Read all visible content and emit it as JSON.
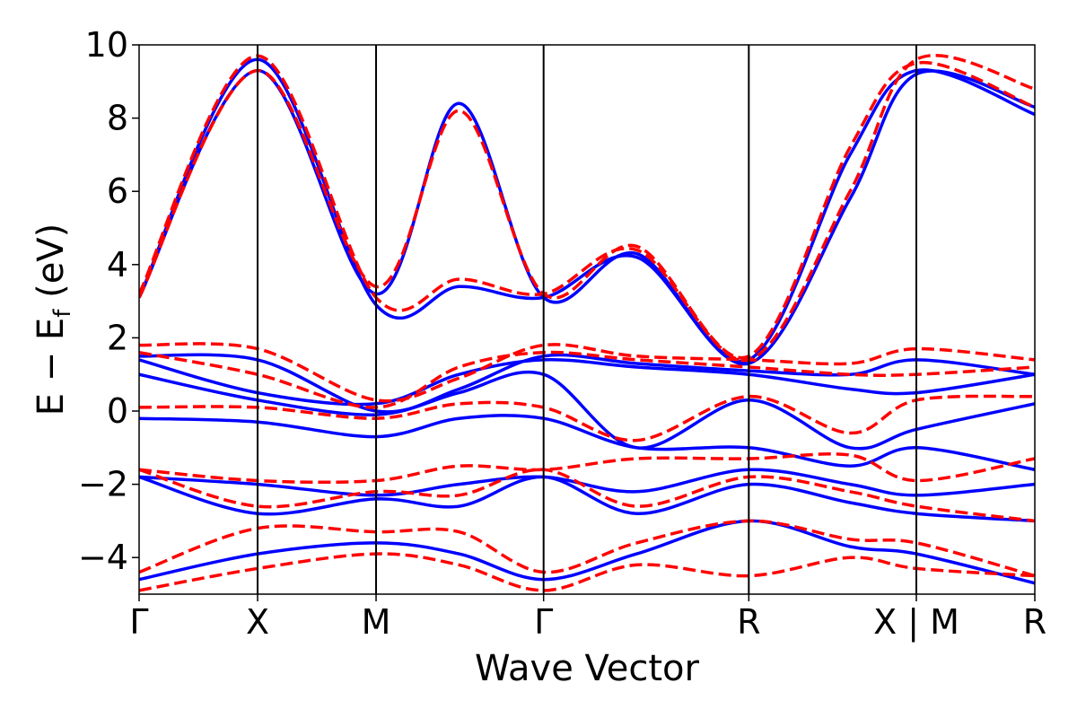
{
  "chart_data": {
    "type": "line",
    "title": "",
    "xlabel": "Wave Vector",
    "ylabel": {
      "main": "E − E",
      "sub": "f",
      "unit": " (eV)"
    },
    "ylim": [
      -5,
      10
    ],
    "yticks": [
      10,
      8,
      6,
      4,
      2,
      0,
      -2,
      -4
    ],
    "ytick_labels": [
      "10",
      "8",
      "6",
      "4",
      "2",
      "0",
      "−2",
      "−4"
    ],
    "grid": false,
    "colors": {
      "blue": "#0000ff",
      "red": "#ff0000",
      "axis": "#000000"
    },
    "kpath": {
      "labels": [
        "Γ",
        "X",
        "M",
        "Γ",
        "R",
        "X | M",
        "R"
      ],
      "x": [
        0.0,
        0.5,
        1.0,
        1.707,
        2.573,
        3.28,
        3.78
      ]
    },
    "series": [
      {
        "style": "solid",
        "color": "#0000ff",
        "bands": [
          {
            "x": [
              0,
              0.5,
              1.0,
              1.35,
              1.707,
              2.1,
              2.573,
              3.0,
              3.28,
              3.78
            ],
            "y": [
              3.1,
              9.3,
              3.2,
              8.4,
              3.1,
              4.3,
              1.4,
              7.0,
              9.3,
              8.1
            ]
          },
          {
            "x": [
              0,
              0.5,
              1.0,
              1.35,
              1.707,
              2.1,
              2.573,
              3.0,
              3.28,
              3.78
            ],
            "y": [
              3.1,
              9.6,
              2.9,
              3.4,
              3.1,
              4.2,
              1.3,
              5.8,
              9.2,
              8.3
            ]
          },
          {
            "x": [
              0,
              0.5,
              1.0,
              1.35,
              1.707,
              2.1,
              2.573,
              3.0,
              3.28,
              3.78
            ],
            "y": [
              1.5,
              1.4,
              0.0,
              0.6,
              1.5,
              1.3,
              1.1,
              1.0,
              1.4,
              1.0
            ]
          },
          {
            "x": [
              0,
              0.5,
              1.0,
              1.35,
              1.707,
              2.1,
              2.573,
              3.0,
              3.28,
              3.78
            ],
            "y": [
              1.4,
              0.5,
              0.2,
              1.0,
              1.4,
              1.2,
              1.0,
              0.6,
              0.5,
              1.0
            ]
          },
          {
            "x": [
              0,
              0.5,
              1.0,
              1.35,
              1.707,
              2.1,
              2.573,
              3.0,
              3.28,
              3.78
            ],
            "y": [
              1.0,
              0.3,
              -0.1,
              0.5,
              1.0,
              -1.0,
              0.3,
              -1.0,
              -0.5,
              0.2
            ]
          },
          {
            "x": [
              0,
              0.5,
              1.0,
              1.35,
              1.707,
              2.1,
              2.573,
              3.0,
              3.28,
              3.78
            ],
            "y": [
              -0.2,
              -0.3,
              -0.7,
              -0.2,
              -0.2,
              -1.0,
              -1.0,
              -1.5,
              -1.0,
              -1.6
            ]
          },
          {
            "x": [
              0,
              0.5,
              1.0,
              1.35,
              1.707,
              2.1,
              2.573,
              3.0,
              3.28,
              3.78
            ],
            "y": [
              -1.8,
              -2.0,
              -2.3,
              -2.0,
              -1.8,
              -2.2,
              -1.6,
              -2.0,
              -2.3,
              -2.0
            ]
          },
          {
            "x": [
              0,
              0.5,
              1.0,
              1.35,
              1.707,
              2.1,
              2.573,
              3.0,
              3.28,
              3.78
            ],
            "y": [
              -1.8,
              -2.8,
              -2.4,
              -2.6,
              -1.8,
              -2.8,
              -2.0,
              -2.5,
              -2.8,
              -3.0
            ]
          },
          {
            "x": [
              0,
              0.5,
              1.0,
              1.35,
              1.707,
              2.1,
              2.573,
              3.0,
              3.28,
              3.78
            ],
            "y": [
              -4.6,
              -3.9,
              -3.6,
              -3.9,
              -4.6,
              -3.9,
              -3.0,
              -3.7,
              -3.9,
              -4.7
            ]
          }
        ]
      },
      {
        "style": "dashed",
        "color": "#ff0000",
        "bands": [
          {
            "x": [
              0,
              0.5,
              1.0,
              1.35,
              1.707,
              2.1,
              2.573,
              3.0,
              3.28,
              3.78
            ],
            "y": [
              3.1,
              9.3,
              3.4,
              8.2,
              3.2,
              4.5,
              1.5,
              7.2,
              9.5,
              8.3
            ]
          },
          {
            "x": [
              0,
              0.5,
              1.0,
              1.35,
              1.707,
              2.1,
              2.573,
              3.0,
              3.28,
              3.78
            ],
            "y": [
              3.2,
              9.7,
              3.1,
              3.6,
              3.2,
              4.4,
              1.4,
              6.0,
              9.6,
              8.8
            ]
          },
          {
            "x": [
              0,
              0.5,
              1.0,
              1.35,
              1.707,
              2.1,
              2.573,
              3.0,
              3.28,
              3.78
            ],
            "y": [
              1.8,
              1.7,
              0.3,
              0.9,
              1.8,
              1.5,
              1.4,
              1.3,
              1.7,
              1.4
            ]
          },
          {
            "x": [
              0,
              0.5,
              1.0,
              1.35,
              1.707,
              2.1,
              2.573,
              3.0,
              3.28,
              3.78
            ],
            "y": [
              1.6,
              1.0,
              0.1,
              1.2,
              1.6,
              1.4,
              1.2,
              1.0,
              1.0,
              1.2
            ]
          },
          {
            "x": [
              0,
              0.5,
              1.0,
              1.35,
              1.707,
              2.1,
              2.573,
              3.0,
              3.28,
              3.78
            ],
            "y": [
              0.1,
              0.1,
              -0.2,
              0.2,
              0.1,
              -0.8,
              0.4,
              -0.6,
              0.3,
              0.4
            ]
          },
          {
            "x": [
              0,
              0.5,
              1.0,
              1.35,
              1.707,
              2.1,
              2.573,
              3.0,
              3.28,
              3.78
            ],
            "y": [
              -1.6,
              -1.9,
              -1.9,
              -1.5,
              -1.6,
              -1.3,
              -1.3,
              -1.2,
              -1.9,
              -1.3
            ]
          },
          {
            "x": [
              0,
              0.5,
              1.0,
              1.35,
              1.707,
              2.1,
              2.573,
              3.0,
              3.28,
              3.78
            ],
            "y": [
              -1.6,
              -2.6,
              -2.2,
              -2.3,
              -1.6,
              -2.6,
              -1.8,
              -2.2,
              -2.6,
              -3.0
            ]
          },
          {
            "x": [
              0,
              0.5,
              1.0,
              1.35,
              1.707,
              2.1,
              2.573,
              3.0,
              3.28,
              3.78
            ],
            "y": [
              -4.4,
              -3.2,
              -3.3,
              -3.3,
              -4.4,
              -3.6,
              -3.0,
              -3.5,
              -3.6,
              -4.5
            ]
          },
          {
            "x": [
              0,
              0.5,
              1.0,
              1.35,
              1.707,
              2.1,
              2.573,
              3.0,
              3.28,
              3.78
            ],
            "y": [
              -4.9,
              -4.3,
              -3.9,
              -4.2,
              -4.9,
              -4.2,
              -4.5,
              -4.0,
              -4.3,
              -4.5
            ]
          }
        ]
      }
    ]
  }
}
